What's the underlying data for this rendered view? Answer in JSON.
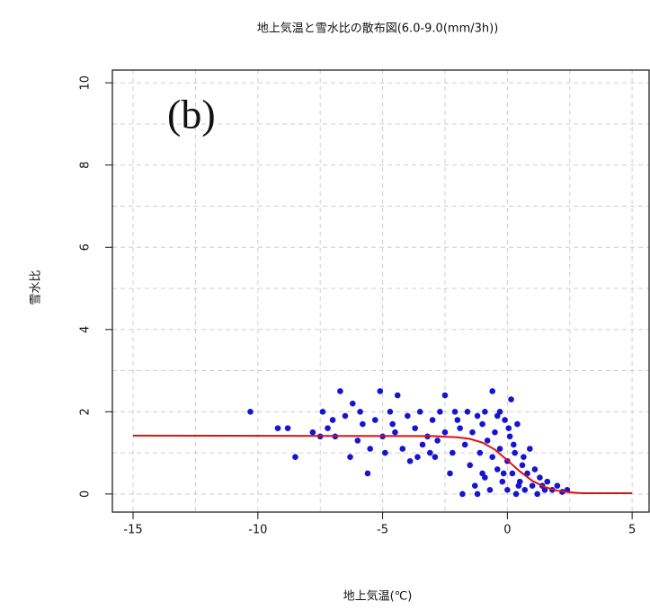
{
  "chart_data": {
    "type": "scatter",
    "title": "地上気温と雪水比の散布図(6.0-9.0(mm/3h))",
    "xlabel": "地上気温(℃)",
    "ylabel": "雪水比",
    "annotation": "(b)",
    "xlim": [
      -15.83,
      5.68
    ],
    "ylim": [
      -0.44,
      10.31
    ],
    "xticks": [
      -15,
      -10,
      -5,
      0,
      5
    ],
    "yticks": [
      0,
      2,
      4,
      6,
      8,
      10
    ],
    "xgrid": [
      -15,
      -12.5,
      -10,
      -7.5,
      -5,
      -2.5,
      0,
      2.5,
      5
    ],
    "ygrid": [
      0,
      1,
      2,
      3,
      4,
      5,
      6,
      7,
      8,
      9,
      10
    ],
    "grid": true,
    "series": [
      {
        "type": "scatter",
        "color": "#1414d2",
        "x": [
          -10.3,
          -9.2,
          -8.8,
          -8.5,
          -7.8,
          -7.4,
          -7.2,
          -7.0,
          -6.9,
          -6.7,
          -6.5,
          -6.3,
          -6.2,
          -6.0,
          -5.8,
          -5.6,
          -5.5,
          -5.3,
          -5.1,
          -5.0,
          -4.9,
          -4.7,
          -4.5,
          -4.4,
          -4.2,
          -4.0,
          -3.9,
          -3.7,
          -3.5,
          -3.4,
          -3.2,
          -3.0,
          -2.9,
          -2.7,
          -2.5,
          -2.5,
          -2.3,
          -2.2,
          -2.0,
          -1.9,
          -1.8,
          -1.7,
          -1.6,
          -1.5,
          -1.4,
          -1.3,
          -1.2,
          -1.1,
          -1.0,
          -0.9,
          -0.9,
          -0.8,
          -0.7,
          -0.6,
          -0.6,
          -0.5,
          -0.4,
          -0.3,
          -0.3,
          -0.2,
          -0.1,
          0.0,
          0.0,
          0.1,
          0.15,
          0.2,
          0.3,
          0.35,
          0.4,
          0.5,
          0.6,
          0.7,
          0.8,
          0.9,
          1.0,
          1.1,
          1.2,
          1.3,
          1.5,
          1.6,
          1.8,
          2.0,
          2.2,
          2.4,
          -7.5,
          -5.9,
          -3.1,
          -2.1,
          -1.0,
          -0.4,
          0.25,
          0.45,
          0.65,
          1.4,
          -2.8,
          -4.6,
          -3.6,
          -1.2,
          -0.15,
          0.05
        ],
        "values": [
          2.0,
          1.6,
          1.6,
          0.9,
          1.5,
          2.0,
          1.6,
          1.8,
          1.4,
          2.5,
          1.9,
          0.9,
          2.2,
          1.3,
          1.7,
          0.5,
          1.1,
          1.8,
          2.5,
          1.4,
          1.0,
          2.0,
          1.5,
          2.4,
          1.1,
          1.9,
          0.8,
          1.6,
          2.0,
          1.2,
          1.4,
          1.8,
          0.9,
          2.0,
          2.4,
          1.5,
          0.5,
          1.0,
          1.8,
          1.6,
          0.0,
          1.2,
          2.0,
          0.7,
          1.5,
          0.2,
          1.9,
          1.0,
          1.7,
          0.4,
          2.0,
          1.3,
          0.1,
          2.5,
          0.9,
          1.5,
          0.6,
          2.0,
          1.1,
          0.3,
          1.8,
          0.8,
          0.1,
          1.4,
          2.3,
          0.5,
          1.0,
          0.0,
          1.7,
          0.3,
          0.7,
          0.1,
          0.5,
          1.1,
          0.2,
          0.6,
          0.0,
          0.4,
          0.1,
          0.3,
          0.1,
          0.2,
          0.05,
          0.1,
          1.4,
          2.0,
          1.0,
          2.0,
          0.5,
          1.9,
          1.2,
          0.2,
          0.9,
          0.2,
          1.3,
          1.7,
          0.9,
          0.0,
          0.5,
          1.6
        ]
      },
      {
        "type": "line",
        "color": "#e01010",
        "x": [
          -15,
          -3,
          -2,
          -1.5,
          -1,
          -0.5,
          0,
          0.5,
          1,
          1.5,
          2,
          2.5,
          3,
          5
        ],
        "values": [
          1.42,
          1.41,
          1.38,
          1.34,
          1.25,
          1.08,
          0.82,
          0.55,
          0.32,
          0.17,
          0.08,
          0.04,
          0.02,
          0.02
        ]
      }
    ]
  }
}
